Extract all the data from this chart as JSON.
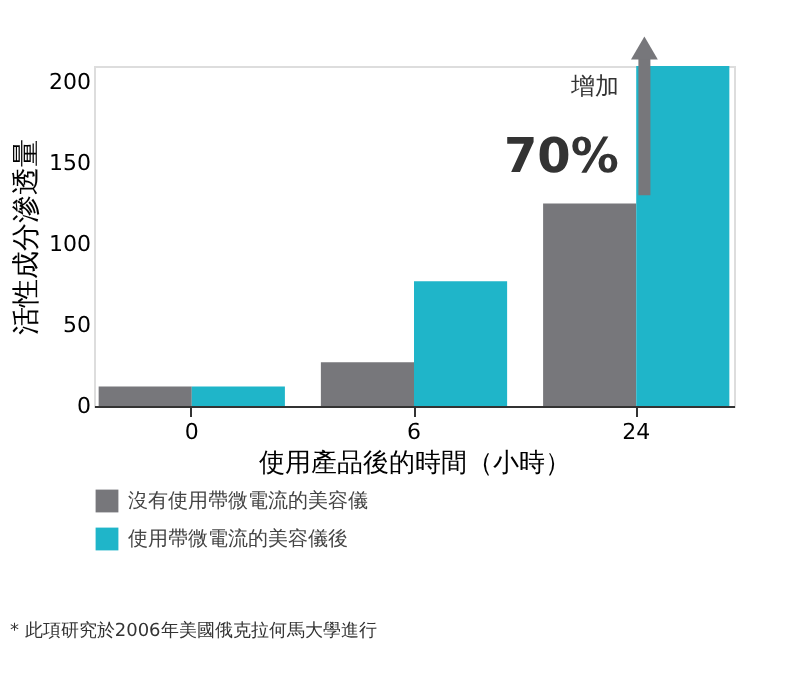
{
  "chart_data": {
    "type": "bar",
    "xlabel": "使用產品後的時間（小時）",
    "ylabel": "活性成分滲透量",
    "categories": [
      "0",
      "6",
      "24"
    ],
    "series": [
      {
        "name": "沒有使用帶微電流的美容儀",
        "color": "#77777b",
        "values": [
          12,
          27,
          125
        ]
      },
      {
        "name": "使用帶微電流的美容儀後",
        "color": "#1fb5c9",
        "values": [
          12,
          77,
          210
        ]
      }
    ],
    "ylim": [
      0,
      210
    ],
    "yticks": [
      0,
      50,
      100,
      150,
      200
    ],
    "grid": false,
    "legend": "bottom",
    "annotations": [
      "增加",
      "70%",
      "* 此項研究於2006年美國俄克拉何馬大學進行"
    ]
  }
}
